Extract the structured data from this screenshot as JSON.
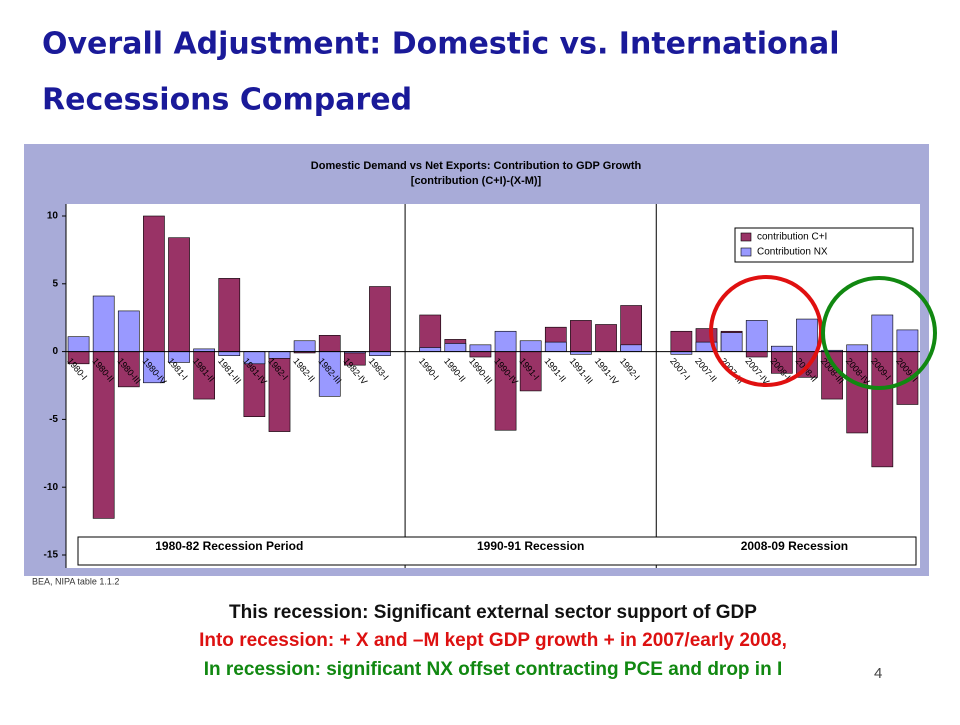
{
  "slide": {
    "title_lines": [
      "Overall Adjustment: Domestic vs. International",
      "Recessions Compared"
    ],
    "source": "BEA, NIPA table 1.1.2",
    "notes": [
      "This recession:  Significant external sector support of GDP",
      "Into recession: + X and –M kept GDP growth + in 2007/early 2008,",
      "In recession: significant NX offset contracting PCE and drop in I"
    ],
    "page_number": "4"
  },
  "chart_data": {
    "type": "bar",
    "title": "Domestic Demand vs Net Exports: Contribution to GDP Growth",
    "subtitle": "[contribution (C+I)-(X-M)]",
    "categories": [
      "1980-I",
      "1980-II",
      "1980-III",
      "1980-IV",
      "1981-I",
      "1981-II",
      "1981-III",
      "1981-IV",
      "1982-I",
      "1982-II",
      "1982-III",
      "1982-IV",
      "1983-I",
      "1990-I",
      "1990-II",
      "1990-III",
      "1990-IV",
      "1991-I",
      "1991-II",
      "1991-III",
      "1991-IV",
      "1992-I",
      "2007-I",
      "2007-II",
      "2007-III",
      "2007-IV",
      "2008-I",
      "2008-II",
      "2008-III",
      "2008-IV",
      "2009-I",
      "2009-II"
    ],
    "series": [
      {
        "name": "contribution C+I",
        "color": "#993366",
        "values": [
          -0.9,
          -12.3,
          -2.6,
          10.0,
          8.4,
          -3.5,
          5.4,
          -4.8,
          -5.9,
          -0.1,
          1.2,
          -1.0,
          4.8,
          2.7,
          0.9,
          -0.4,
          -5.8,
          -2.9,
          1.8,
          2.3,
          2.0,
          3.4,
          1.5,
          1.7,
          1.5,
          -0.4,
          -1.6,
          -1.9,
          -3.5,
          -6.0,
          -8.5,
          -3.9
        ]
      },
      {
        "name": "Contribution NX",
        "color": "#9999ff",
        "values": [
          1.1,
          4.1,
          3.0,
          -2.3,
          -0.8,
          0.2,
          -0.3,
          -0.9,
          -0.5,
          0.8,
          -3.3,
          -0.1,
          -0.3,
          0.3,
          0.6,
          0.5,
          1.5,
          0.8,
          0.7,
          -0.2,
          0.0,
          0.5,
          -0.2,
          0.7,
          1.4,
          2.3,
          0.4,
          2.4,
          0.1,
          0.5,
          2.7,
          1.6
        ]
      }
    ],
    "periods": [
      "1980-82 Recession Period",
      "1990-91 Recession",
      "2008-09 Recession"
    ],
    "ylim": [
      -15,
      10
    ],
    "yticks": [
      -15,
      -10,
      -5,
      0,
      5,
      10
    ],
    "legend": "top-right"
  }
}
